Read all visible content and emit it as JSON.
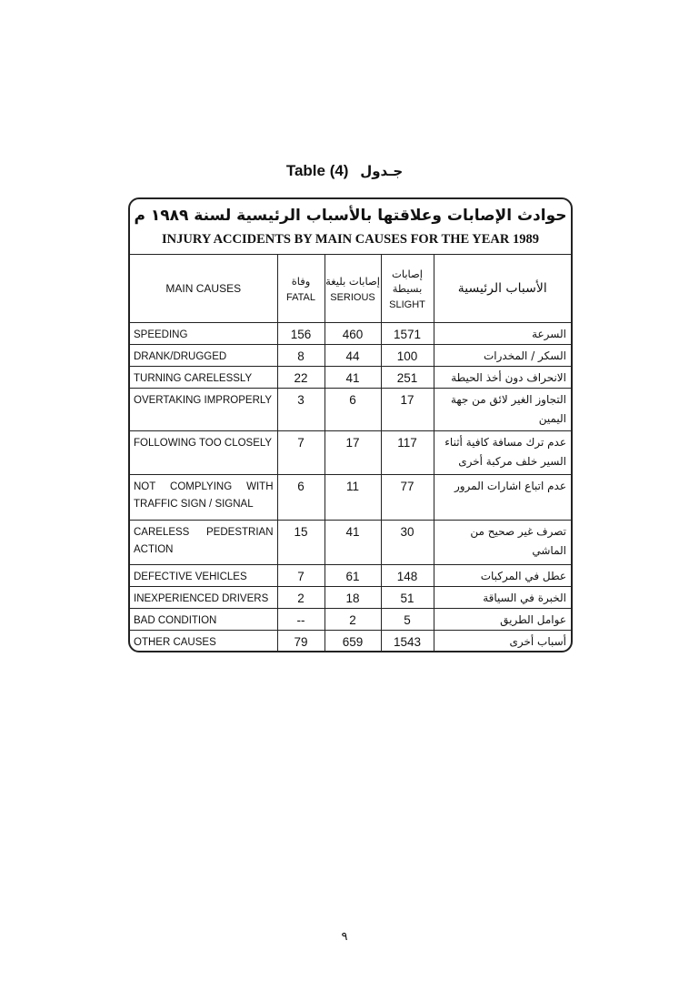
{
  "caption": {
    "en": "Table (4)",
    "ar": "جـدول"
  },
  "table": {
    "title_ar": "حوادث الإصابات وعلاقتها بالأسباب الرئيسية لسنة ١٩٨٩ م",
    "title_en": "INJURY ACCIDENTS BY MAIN CAUSES FOR THE YEAR 1989",
    "headers": {
      "main_causes": "MAIN CAUSES",
      "fatal_ar": "وفاة",
      "fatal_en": "FATAL",
      "serious_ar": "إصابات بليغة",
      "serious_en": "SERIOUS",
      "slight_ar": "إصابات بسيطة",
      "slight_en": "SLIGHT",
      "main_causes_ar": "الأسباب الرئيسية"
    },
    "rows": [
      {
        "cause": "SPEEDING",
        "fatal": "156",
        "serious": "460",
        "slight": "1571",
        "cause_ar": "السرعة"
      },
      {
        "cause": "DRANK/DRUGGED",
        "fatal": "8",
        "serious": "44",
        "slight": "100",
        "cause_ar": "السكر / المخدرات"
      },
      {
        "cause": "TURNING CARELESSLY",
        "fatal": "22",
        "serious": "41",
        "slight": "251",
        "cause_ar": "الانحراف دون أخذ الحيطة"
      },
      {
        "cause": "OVERTAKING IMPROPERLY",
        "fatal": "3",
        "serious": "6",
        "slight": "17",
        "cause_ar": "التجاوز الغير لائق من جهة اليمين"
      },
      {
        "cause": "FOLLOWING TOO CLOSELY",
        "fatal": "7",
        "serious": "17",
        "slight": "117",
        "cause_ar": "عدم ترك مسافة كافية أثناء السير خلف مركبة أخرى"
      },
      {
        "cause": "NOT COMPLYING WITH TRAFFIC SIGN / SIGNAL",
        "fatal": "6",
        "serious": "11",
        "slight": "77",
        "cause_ar": "عدم اتباع اشارات المرور"
      },
      {
        "cause": "CARELESS PEDESTRIAN ACTION",
        "fatal": "15",
        "serious": "41",
        "slight": "30",
        "cause_ar": "تصرف غير صحيح من الماشي"
      },
      {
        "cause": "DEFECTIVE VEHICLES",
        "fatal": "7",
        "serious": "61",
        "slight": "148",
        "cause_ar": "عطل في المركبات"
      },
      {
        "cause": "INEXPERIENCED DRIVERS",
        "fatal": "2",
        "serious": "18",
        "slight": "51",
        "cause_ar": "الخبرة في السياقة"
      },
      {
        "cause": "BAD CONDITION",
        "fatal": "--",
        "serious": "2",
        "slight": "5",
        "cause_ar": "عوامل الطريق"
      },
      {
        "cause": "OTHER CAUSES",
        "fatal": "79",
        "serious": "659",
        "slight": "1543",
        "cause_ar": "أسباب أخرى"
      }
    ]
  },
  "page_number": "٩"
}
